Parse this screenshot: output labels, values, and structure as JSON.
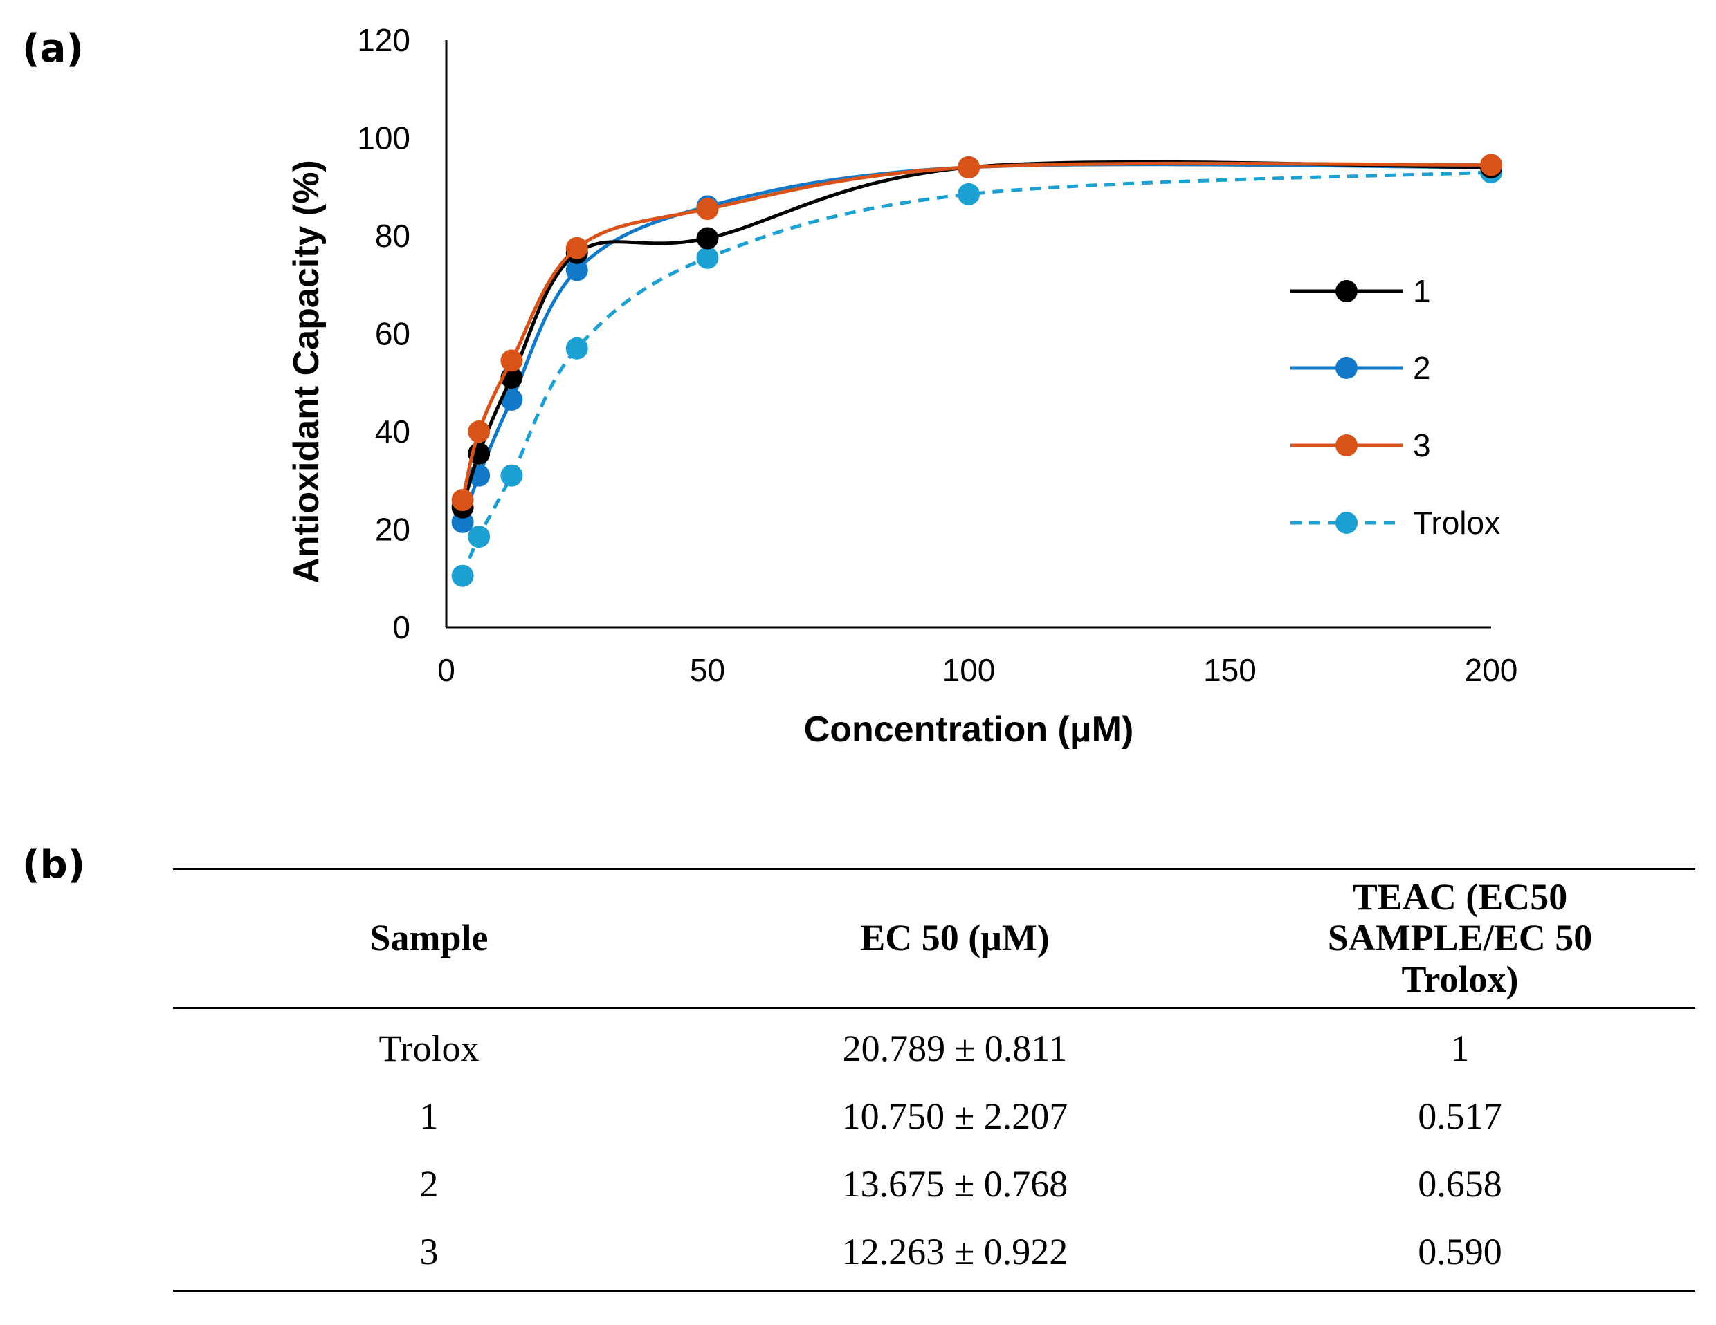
{
  "panels": {
    "a": "(a)",
    "b": "(b)"
  },
  "chart_data": {
    "type": "line",
    "title": "",
    "xlabel": "Concentration (μM)",
    "ylabel": "Antioxidant Capacity (%)",
    "xlim": [
      0,
      200
    ],
    "ylim": [
      0,
      120
    ],
    "xticks": [
      0,
      50,
      100,
      150,
      200
    ],
    "yticks": [
      0,
      20,
      40,
      60,
      80,
      100,
      120
    ],
    "grid": false,
    "legend_position": "right",
    "series": [
      {
        "name": "1",
        "color": "#000000",
        "dashed": false,
        "x": [
          3.125,
          6.25,
          12.5,
          25,
          50,
          100,
          200
        ],
        "y": [
          24.5,
          35.5,
          51,
          76.5,
          79.5,
          94,
          94
        ]
      },
      {
        "name": "2",
        "color": "#1278c8",
        "dashed": false,
        "x": [
          3.125,
          6.25,
          12.5,
          25,
          50,
          100,
          200
        ],
        "y": [
          21.5,
          31,
          46.5,
          73,
          86,
          94,
          94
        ]
      },
      {
        "name": "3",
        "color": "#d95319",
        "dashed": false,
        "x": [
          3.125,
          6.25,
          12.5,
          25,
          50,
          100,
          200
        ],
        "y": [
          26,
          40,
          54.5,
          77.5,
          85.5,
          94,
          94.5
        ]
      },
      {
        "name": "Trolox",
        "color": "#1ca0d2",
        "dashed": true,
        "x": [
          3.125,
          6.25,
          12.5,
          25,
          50,
          100,
          200
        ],
        "y": [
          10.5,
          18.5,
          31,
          57,
          75.5,
          88.5,
          93
        ]
      }
    ]
  },
  "table": {
    "headers": [
      "Sample",
      "EC 50 (μM)",
      "TEAC (EC50 SAMPLE/EC 50 Trolox)"
    ],
    "rows": [
      [
        "Trolox",
        "20.789 ± 0.811",
        "1"
      ],
      [
        "1",
        "10.750 ± 2.207",
        "0.517"
      ],
      [
        "2",
        "13.675 ± 0.768",
        "0.658"
      ],
      [
        "3",
        "12.263 ± 0.922",
        "0.590"
      ]
    ]
  }
}
